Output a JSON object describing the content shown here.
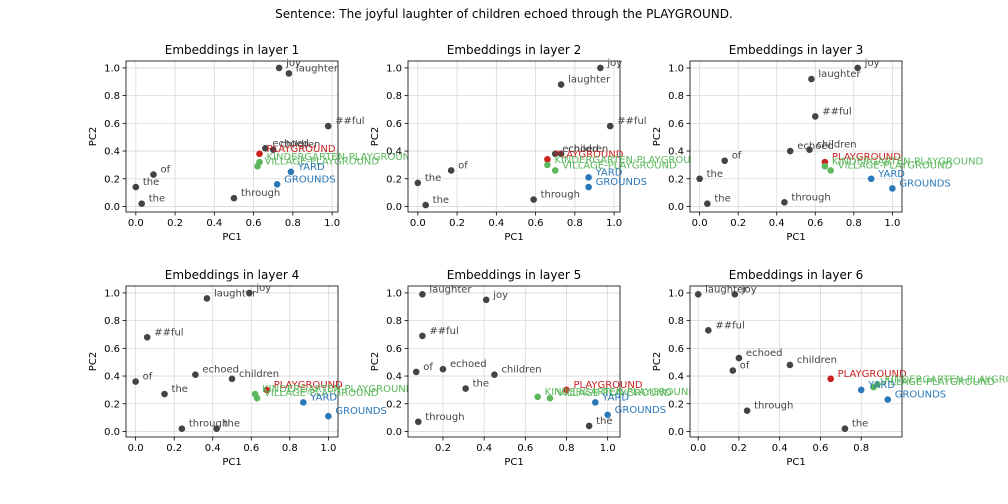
{
  "figure": {
    "title": "Sentence: The joyful laughter of children echoed through the PLAYGROUND."
  },
  "colors": {
    "gray": "#444444",
    "red": "#cc1f1f",
    "green": "#5cb85c",
    "blue": "#2a78b8"
  },
  "chart_data": [
    {
      "type": "scatter",
      "title": "Embeddings in layer 1",
      "xlabel": "PC1",
      "ylabel": "PC2",
      "xlim": [
        -0.05,
        1.03
      ],
      "ylim": [
        -0.04,
        1.05
      ],
      "xticks": [
        "0.0",
        "0.2",
        "0.4",
        "0.6",
        "0.8",
        "1.0"
      ],
      "yticks": [
        "0.0",
        "0.2",
        "0.4",
        "0.6",
        "0.8",
        "1.0"
      ],
      "grid": true,
      "points": [
        {
          "label": "joy",
          "x": 0.73,
          "y": 1.0,
          "color": "gray"
        },
        {
          "label": "laughter",
          "x": 0.78,
          "y": 0.96,
          "color": "gray"
        },
        {
          "label": "##ful",
          "x": 0.98,
          "y": 0.58,
          "color": "gray"
        },
        {
          "label": "echoed",
          "x": 0.66,
          "y": 0.42,
          "color": "gray"
        },
        {
          "label": "children",
          "x": 0.7,
          "y": 0.41,
          "color": "gray"
        },
        {
          "label": "PLAYGROUND",
          "x": 0.63,
          "y": 0.38,
          "color": "red"
        },
        {
          "label": "KINDERGARTEN-PLAYGROUND",
          "x": 0.63,
          "y": 0.32,
          "color": "green"
        },
        {
          "label": "VILLAGE-PLAYGROUND",
          "x": 0.62,
          "y": 0.29,
          "color": "green"
        },
        {
          "label": "YARD",
          "x": 0.79,
          "y": 0.25,
          "color": "blue"
        },
        {
          "label": "GROUNDS",
          "x": 0.72,
          "y": 0.16,
          "color": "blue"
        },
        {
          "label": "of",
          "x": 0.09,
          "y": 0.23,
          "color": "gray"
        },
        {
          "label": "the",
          "x": 0.0,
          "y": 0.14,
          "color": "gray"
        },
        {
          "label": "the",
          "x": 0.03,
          "y": 0.02,
          "color": "gray"
        },
        {
          "label": "through",
          "x": 0.5,
          "y": 0.06,
          "color": "gray"
        }
      ]
    },
    {
      "type": "scatter",
      "title": "Embeddings in layer 2",
      "xlabel": "PC1",
      "ylabel": "PC2",
      "xlim": [
        -0.05,
        1.03
      ],
      "ylim": [
        -0.04,
        1.05
      ],
      "xticks": [
        "0.0",
        "0.2",
        "0.4",
        "0.6",
        "0.8",
        "1.0"
      ],
      "yticks": [
        "0.0",
        "0.2",
        "0.4",
        "0.6",
        "0.8",
        "1.0"
      ],
      "grid": true,
      "points": [
        {
          "label": "joy",
          "x": 0.93,
          "y": 1.0,
          "color": "gray"
        },
        {
          "label": "laughter",
          "x": 0.73,
          "y": 0.88,
          "color": "gray"
        },
        {
          "label": "##ful",
          "x": 0.98,
          "y": 0.58,
          "color": "gray"
        },
        {
          "label": "children",
          "x": 0.73,
          "y": 0.38,
          "color": "gray"
        },
        {
          "label": "echoed",
          "x": 0.7,
          "y": 0.38,
          "color": "gray"
        },
        {
          "label": "PLAYGROUND",
          "x": 0.66,
          "y": 0.34,
          "color": "red"
        },
        {
          "label": "KINDERGARTEN-PLAYGROUND",
          "x": 0.66,
          "y": 0.3,
          "color": "green"
        },
        {
          "label": "VILLAGE-PLAYGROUND",
          "x": 0.7,
          "y": 0.26,
          "color": "green"
        },
        {
          "label": "YARD",
          "x": 0.87,
          "y": 0.21,
          "color": "blue"
        },
        {
          "label": "GROUNDS",
          "x": 0.87,
          "y": 0.14,
          "color": "blue"
        },
        {
          "label": "of",
          "x": 0.17,
          "y": 0.26,
          "color": "gray"
        },
        {
          "label": "the",
          "x": 0.0,
          "y": 0.17,
          "color": "gray"
        },
        {
          "label": "the",
          "x": 0.04,
          "y": 0.01,
          "color": "gray"
        },
        {
          "label": "through",
          "x": 0.59,
          "y": 0.05,
          "color": "gray"
        }
      ]
    },
    {
      "type": "scatter",
      "title": "Embeddings in layer 3",
      "xlabel": "PC1",
      "ylabel": "PC2",
      "xlim": [
        -0.05,
        1.05
      ],
      "ylim": [
        -0.04,
        1.05
      ],
      "xticks": [
        "0.0",
        "0.2",
        "0.4",
        "0.6",
        "0.8",
        "1.0"
      ],
      "yticks": [
        "0.0",
        "0.2",
        "0.4",
        "0.6",
        "0.8",
        "1.0"
      ],
      "grid": true,
      "points": [
        {
          "label": "joy",
          "x": 0.82,
          "y": 1.0,
          "color": "gray"
        },
        {
          "label": "laughter",
          "x": 0.58,
          "y": 0.92,
          "color": "gray"
        },
        {
          "label": "##ful",
          "x": 0.6,
          "y": 0.65,
          "color": "gray"
        },
        {
          "label": "echoed",
          "x": 0.47,
          "y": 0.4,
          "color": "gray"
        },
        {
          "label": "children",
          "x": 0.57,
          "y": 0.41,
          "color": "gray"
        },
        {
          "label": "PLAYGROUND",
          "x": 0.65,
          "y": 0.32,
          "color": "red"
        },
        {
          "label": "KINDERGARTEN-PLAYGROUND",
          "x": 0.65,
          "y": 0.29,
          "color": "green"
        },
        {
          "label": "VILLAGE-PLAYGROUND",
          "x": 0.68,
          "y": 0.26,
          "color": "green"
        },
        {
          "label": "YARD",
          "x": 0.89,
          "y": 0.2,
          "color": "blue"
        },
        {
          "label": "GROUNDS",
          "x": 1.0,
          "y": 0.13,
          "color": "blue"
        },
        {
          "label": "of",
          "x": 0.13,
          "y": 0.33,
          "color": "gray"
        },
        {
          "label": "the",
          "x": 0.0,
          "y": 0.2,
          "color": "gray"
        },
        {
          "label": "the",
          "x": 0.04,
          "y": 0.02,
          "color": "gray"
        },
        {
          "label": "through",
          "x": 0.44,
          "y": 0.03,
          "color": "gray"
        }
      ]
    },
    {
      "type": "scatter",
      "title": "Embeddings in layer 4",
      "xlabel": "PC1",
      "ylabel": "PC2",
      "xlim": [
        -0.05,
        1.05
      ],
      "ylim": [
        -0.04,
        1.05
      ],
      "xticks": [
        "0.0",
        "0.2",
        "0.4",
        "0.6",
        "0.8",
        "1.0"
      ],
      "yticks": [
        "0.0",
        "0.2",
        "0.4",
        "0.6",
        "0.8",
        "1.0"
      ],
      "grid": true,
      "points": [
        {
          "label": "joy",
          "x": 0.59,
          "y": 1.0,
          "color": "gray"
        },
        {
          "label": "laughter",
          "x": 0.37,
          "y": 0.96,
          "color": "gray"
        },
        {
          "label": "##ful",
          "x": 0.06,
          "y": 0.68,
          "color": "gray"
        },
        {
          "label": "of",
          "x": 0.0,
          "y": 0.36,
          "color": "gray"
        },
        {
          "label": "echoed",
          "x": 0.31,
          "y": 0.41,
          "color": "gray"
        },
        {
          "label": "children",
          "x": 0.5,
          "y": 0.38,
          "color": "gray"
        },
        {
          "label": "the",
          "x": 0.15,
          "y": 0.27,
          "color": "gray"
        },
        {
          "label": "PLAYGROUND",
          "x": 0.68,
          "y": 0.3,
          "color": "red"
        },
        {
          "label": "KINDERGARTEN-PLAYGROUND",
          "x": 0.62,
          "y": 0.27,
          "color": "green"
        },
        {
          "label": "VILLAGE-PLAYGROUND",
          "x": 0.63,
          "y": 0.24,
          "color": "green"
        },
        {
          "label": "YARD",
          "x": 0.87,
          "y": 0.21,
          "color": "blue"
        },
        {
          "label": "GROUNDS",
          "x": 1.0,
          "y": 0.11,
          "color": "blue"
        },
        {
          "label": "through",
          "x": 0.24,
          "y": 0.02,
          "color": "gray"
        },
        {
          "label": "the",
          "x": 0.42,
          "y": 0.02,
          "color": "gray"
        }
      ]
    },
    {
      "type": "scatter",
      "title": "Embeddings in layer 5",
      "xlabel": "PC1",
      "ylabel": "PC2",
      "xlim": [
        0.03,
        1.06
      ],
      "ylim": [
        -0.04,
        1.05
      ],
      "xticks": [
        "0.2",
        "0.4",
        "0.6",
        "0.8",
        "1.0"
      ],
      "yticks": [
        "0.0",
        "0.2",
        "0.4",
        "0.6",
        "0.8",
        "1.0"
      ],
      "grid": true,
      "points": [
        {
          "label": "laughter",
          "x": 0.1,
          "y": 0.99,
          "color": "gray"
        },
        {
          "label": "joy",
          "x": 0.41,
          "y": 0.95,
          "color": "gray"
        },
        {
          "label": "##ful",
          "x": 0.1,
          "y": 0.69,
          "color": "gray"
        },
        {
          "label": "of",
          "x": 0.07,
          "y": 0.43,
          "color": "gray"
        },
        {
          "label": "echoed",
          "x": 0.2,
          "y": 0.45,
          "color": "gray"
        },
        {
          "label": "children",
          "x": 0.45,
          "y": 0.41,
          "color": "gray"
        },
        {
          "label": "the",
          "x": 0.31,
          "y": 0.31,
          "color": "gray"
        },
        {
          "label": "PLAYGROUND",
          "x": 0.8,
          "y": 0.3,
          "color": "red"
        },
        {
          "label": "KINDERGARTEN-PLAYGROUND",
          "x": 0.66,
          "y": 0.25,
          "color": "green"
        },
        {
          "label": "VILLAGE-PLAYGROUND",
          "x": 0.72,
          "y": 0.24,
          "color": "green"
        },
        {
          "label": "YARD",
          "x": 0.94,
          "y": 0.21,
          "color": "blue"
        },
        {
          "label": "GROUNDS",
          "x": 1.0,
          "y": 0.12,
          "color": "blue"
        },
        {
          "label": "through",
          "x": 0.08,
          "y": 0.07,
          "color": "gray"
        },
        {
          "label": "the",
          "x": 0.91,
          "y": 0.04,
          "color": "gray"
        }
      ]
    },
    {
      "type": "scatter",
      "title": "Embeddings in layer 6",
      "xlabel": "PC1",
      "ylabel": "PC2",
      "xlim": [
        -0.04,
        1.0
      ],
      "ylim": [
        -0.04,
        1.05
      ],
      "xticks": [
        "0.0",
        "0.2",
        "0.4",
        "0.6",
        "0.8"
      ],
      "yticks": [
        "0.0",
        "0.2",
        "0.4",
        "0.6",
        "0.8",
        "1.0"
      ],
      "grid": true,
      "points": [
        {
          "label": "laughter",
          "x": 0.0,
          "y": 0.99,
          "color": "gray"
        },
        {
          "label": "joy",
          "x": 0.18,
          "y": 0.99,
          "color": "gray"
        },
        {
          "label": "##ful",
          "x": 0.05,
          "y": 0.73,
          "color": "gray"
        },
        {
          "label": "echoed",
          "x": 0.2,
          "y": 0.53,
          "color": "gray"
        },
        {
          "label": "of",
          "x": 0.17,
          "y": 0.44,
          "color": "gray"
        },
        {
          "label": "children",
          "x": 0.45,
          "y": 0.48,
          "color": "gray"
        },
        {
          "label": "PLAYGROUND",
          "x": 0.65,
          "y": 0.38,
          "color": "red"
        },
        {
          "label": "KINDERGARTEN-PLAYGROUND",
          "x": 0.88,
          "y": 0.34,
          "color": "green"
        },
        {
          "label": "VILLAGE-PLAYGROUND",
          "x": 0.86,
          "y": 0.32,
          "color": "green"
        },
        {
          "label": "YARD",
          "x": 0.8,
          "y": 0.3,
          "color": "blue"
        },
        {
          "label": "GROUNDS",
          "x": 0.93,
          "y": 0.23,
          "color": "blue"
        },
        {
          "label": "through",
          "x": 0.24,
          "y": 0.15,
          "color": "gray"
        },
        {
          "label": "the",
          "x": 0.72,
          "y": 0.02,
          "color": "gray"
        }
      ]
    }
  ]
}
